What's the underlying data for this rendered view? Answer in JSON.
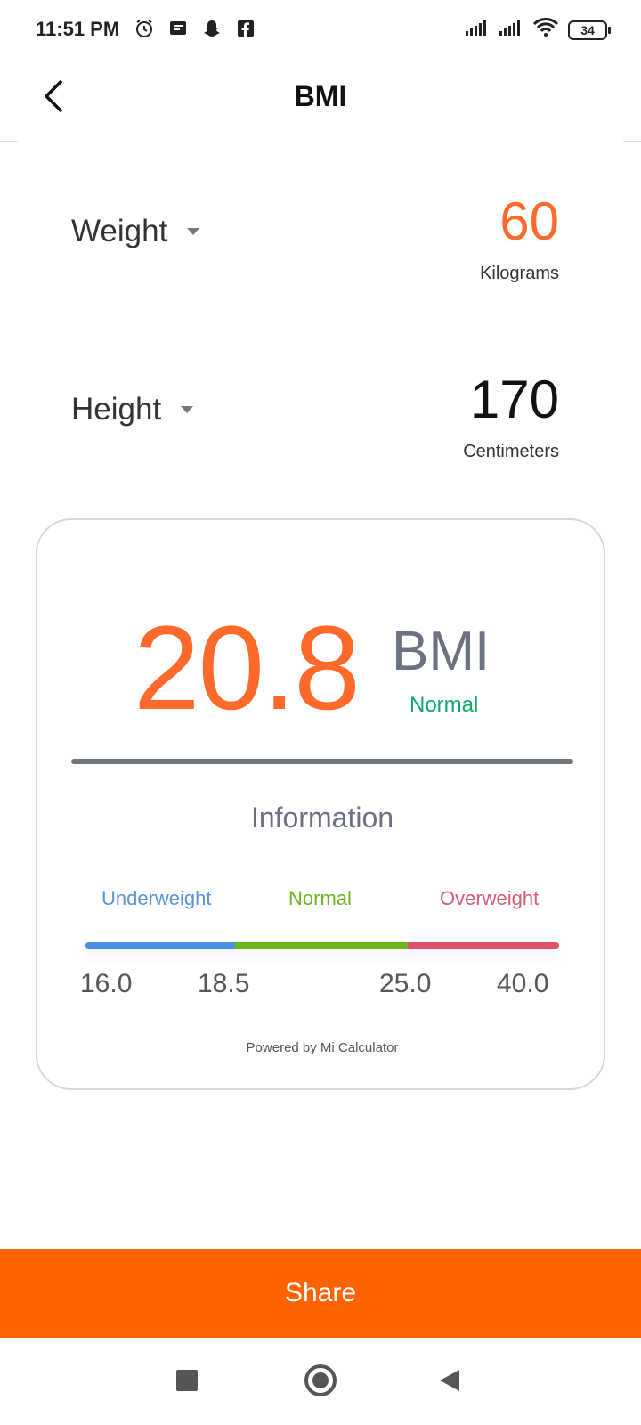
{
  "status_bar": {
    "time": "11:51 PM",
    "battery": "34",
    "icons_left": [
      "alarm-icon",
      "message-icon",
      "snapchat-icon",
      "facebook-icon"
    ],
    "icons_right": [
      "signal-icon",
      "signal-icon",
      "wifi-icon",
      "battery-icon"
    ]
  },
  "header": {
    "title": "BMI",
    "back_icon": "chevron-left-icon"
  },
  "weight": {
    "label": "Weight",
    "value": "60",
    "unit": "Kilograms",
    "value_color": "#ff6a2b"
  },
  "height": {
    "label": "Height",
    "value": "170",
    "unit": "Centimeters",
    "value_color": "#111111"
  },
  "result": {
    "value": "20.8",
    "unit": "BMI",
    "status": "Normal",
    "value_color": "#ff6a2b",
    "status_color": "#12a86a"
  },
  "information": {
    "title": "Information",
    "ranges": [
      {
        "label": "Underweight",
        "color": "#4a90e2"
      },
      {
        "label": "Normal",
        "color": "#6bb51a"
      },
      {
        "label": "Overweight",
        "color": "#e0506a"
      }
    ],
    "range_label_colors": [
      "#5b92d6",
      "#6bb51a",
      "#d45b74"
    ],
    "ticks": [
      "16.0",
      "18.5",
      "25.0",
      "40.0"
    ],
    "powered_by": "Powered by Mi Calculator"
  },
  "share": {
    "label": "Share",
    "color": "#ff6300"
  }
}
